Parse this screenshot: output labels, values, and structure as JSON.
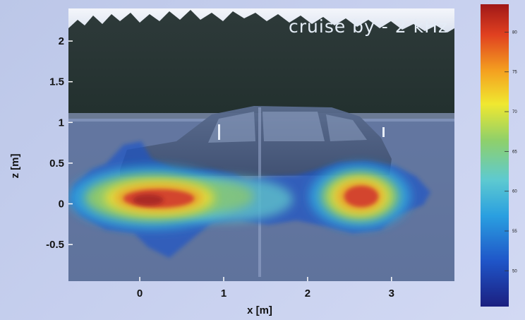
{
  "chart_data": {
    "type": "heatmap",
    "title": "cruise by  - 2 kHz",
    "xlabel": "x [m]",
    "ylabel": "z [m]",
    "xlim": [
      -0.85,
      3.75
    ],
    "ylim": [
      -0.95,
      2.4
    ],
    "x_ticks": [
      {
        "value": 0,
        "label": "0"
      },
      {
        "value": 1,
        "label": "1"
      },
      {
        "value": 2,
        "label": "2"
      },
      {
        "value": 3,
        "label": "3"
      }
    ],
    "y_ticks": [
      {
        "value": 2,
        "label": "2"
      },
      {
        "value": 1.5,
        "label": "1.5"
      },
      {
        "value": 1,
        "label": "1"
      },
      {
        "value": 0.5,
        "label": "0.5"
      },
      {
        "value": 0,
        "label": "0"
      },
      {
        "value": -0.5,
        "label": "-0.5"
      }
    ],
    "background": "photo of a car driving past a tree line",
    "hotspots": [
      {
        "x": 0.2,
        "z": 0.05,
        "level": "max"
      },
      {
        "x": 2.6,
        "z": 0.05,
        "level": "max"
      }
    ],
    "colorbar": {
      "colors": [
        "#1b1f80",
        "#1f55c8",
        "#2a9fe0",
        "#5ecad0",
        "#8fd06a",
        "#f0e830",
        "#f4a020",
        "#e04020",
        "#a01818"
      ],
      "tick_labels": [
        "50",
        "55",
        "60",
        "65",
        "70",
        "75",
        "80"
      ]
    }
  }
}
